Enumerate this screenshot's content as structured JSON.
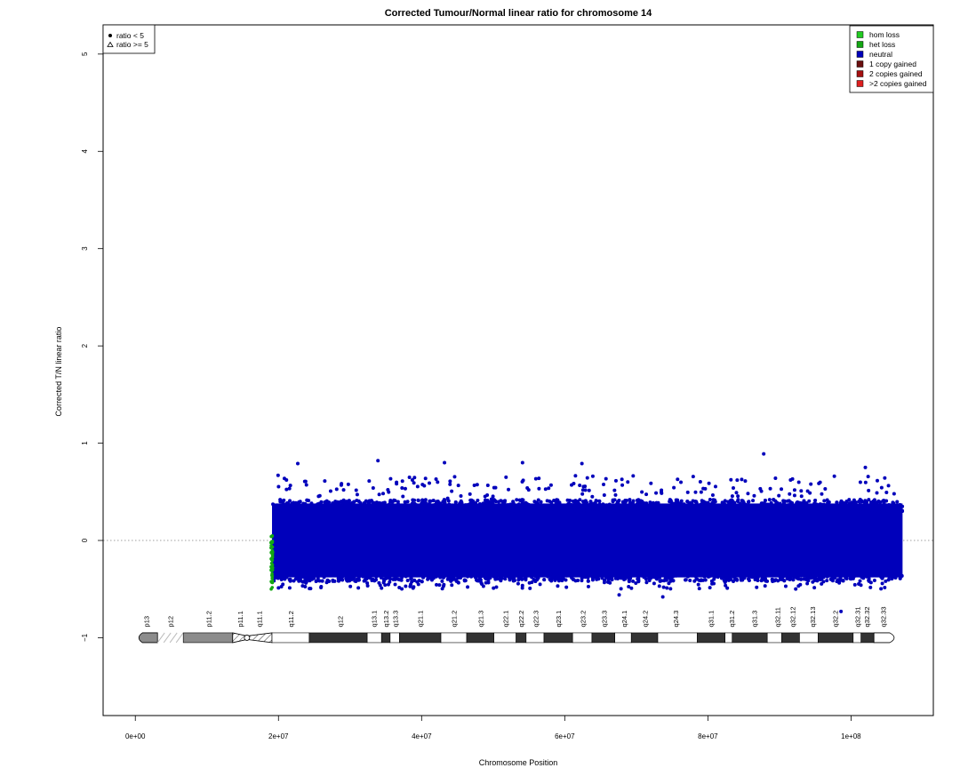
{
  "chart_data": {
    "type": "scatter",
    "title": "Corrected Tumour/Normal linear ratio for chromosome  14",
    "xlabel": "Chromosome Position",
    "ylabel": "Corrected T/N linear ratio",
    "xlim": [
      -4500000,
      111500000
    ],
    "ylim": [
      -1.8,
      5.3
    ],
    "x_ticks": [
      {
        "value": 0,
        "label": "0e+00"
      },
      {
        "value": 20000000,
        "label": "2e+07"
      },
      {
        "value": 40000000,
        "label": "4e+07"
      },
      {
        "value": 60000000,
        "label": "6e+07"
      },
      {
        "value": 80000000,
        "label": "8e+07"
      },
      {
        "value": 100000000,
        "label": "1e+08"
      }
    ],
    "y_ticks": [
      {
        "value": -1,
        "label": "−1"
      },
      {
        "value": 0,
        "label": "0"
      },
      {
        "value": 1,
        "label": "1"
      },
      {
        "value": 2,
        "label": "2"
      },
      {
        "value": 3,
        "label": "3"
      },
      {
        "value": 4,
        "label": "4"
      },
      {
        "value": 5,
        "label": "5"
      }
    ],
    "reference_line": {
      "y": 0,
      "style": "dotted",
      "color": "#808080"
    },
    "shape_legend": {
      "placement": "top-left",
      "items": [
        {
          "symbol": "dot",
          "label": "ratio < 5"
        },
        {
          "symbol": "triangle",
          "label": "ratio >= 5"
        }
      ]
    },
    "color_legend": {
      "placement": "top-right",
      "items": [
        {
          "label": "hom loss",
          "color": "#22cc22"
        },
        {
          "label": "het loss",
          "color": "#13a813"
        },
        {
          "label": "neutral",
          "color": "#0000bb"
        },
        {
          "label": "1 copy gained",
          "color": "#6b0f0f"
        },
        {
          "label": "2 copies gained",
          "color": "#a51010"
        },
        {
          "label": ">2 copies gained",
          "color": "#dd1f1f"
        }
      ]
    },
    "series": [
      {
        "name": "neutral",
        "color": "#0000bb",
        "x_range": [
          19100000,
          107200000
        ],
        "y_core_range": [
          -0.38,
          0.38
        ],
        "y_spread_range": [
          -0.56,
          0.9
        ],
        "outliers": [
          {
            "x": 22700000,
            "y": 0.79
          },
          {
            "x": 33900000,
            "y": 0.82
          },
          {
            "x": 43200000,
            "y": 0.8
          },
          {
            "x": 54100000,
            "y": 0.8
          },
          {
            "x": 62400000,
            "y": 0.79
          },
          {
            "x": 87800000,
            "y": 0.89
          },
          {
            "x": 98600000,
            "y": -0.73
          },
          {
            "x": 73700000,
            "y": -0.58
          },
          {
            "x": 67600000,
            "y": -0.56
          },
          {
            "x": 102000000,
            "y": 0.75
          }
        ]
      },
      {
        "name": "het loss",
        "color": "#13a813",
        "x_range": [
          18950000,
          19200000
        ],
        "y_range": [
          -0.5,
          0.05
        ]
      }
    ],
    "ideogram": {
      "y": -1,
      "bands": [
        {
          "name": "p13",
          "start": 0,
          "end": 3100000,
          "stain": "acen-gray",
          "label_x": 1500000
        },
        {
          "name": "p12",
          "start": 3100000,
          "end": 6700000,
          "stain": "stalk",
          "label_x": 4900000
        },
        {
          "name": "p11.2",
          "start": 6700000,
          "end": 13600000,
          "stain": "gvar",
          "label_x": 10200000
        },
        {
          "name": "p11.1",
          "start": 13600000,
          "end": 15600000,
          "stain": "hatch",
          "label_x": 14600000
        },
        {
          "name": "q11.1",
          "start": 15600000,
          "end": 19100000,
          "stain": "hatch",
          "label_x": 17300000
        },
        {
          "name": "q11.2",
          "start": 19100000,
          "end": 24300000,
          "stain": "gneg",
          "label_x": 21700000
        },
        {
          "name": "q12",
          "start": 24300000,
          "end": 32400000,
          "stain": "gpos100",
          "label_x": 28600000
        },
        {
          "name": "q13.1",
          "start": 32400000,
          "end": 34400000,
          "stain": "gneg",
          "label_x": 33300000
        },
        {
          "name": "q13.2",
          "start": 34400000,
          "end": 35600000,
          "stain": "gpos100",
          "label_x": 35000000
        },
        {
          "name": "q13.3",
          "start": 35600000,
          "end": 36900000,
          "stain": "gneg",
          "label_x": 36300000
        },
        {
          "name": "q21.1",
          "start": 36900000,
          "end": 42700000,
          "stain": "gpos100",
          "label_x": 39800000
        },
        {
          "name": "q21.2",
          "start": 42700000,
          "end": 46300000,
          "stain": "gneg",
          "label_x": 44500000
        },
        {
          "name": "q21.3",
          "start": 46300000,
          "end": 50100000,
          "stain": "gpos100",
          "label_x": 48200000
        },
        {
          "name": "q22.1",
          "start": 50100000,
          "end": 53200000,
          "stain": "gneg",
          "label_x": 51700000
        },
        {
          "name": "q22.2",
          "start": 53200000,
          "end": 54600000,
          "stain": "gpos100",
          "label_x": 53900000
        },
        {
          "name": "q22.3",
          "start": 54600000,
          "end": 57100000,
          "stain": "gneg",
          "label_x": 55900000
        },
        {
          "name": "q23.1",
          "start": 57100000,
          "end": 61100000,
          "stain": "gpos100",
          "label_x": 59100000
        },
        {
          "name": "q23.2",
          "start": 61100000,
          "end": 63800000,
          "stain": "gneg",
          "label_x": 62500000
        },
        {
          "name": "q23.3",
          "start": 63800000,
          "end": 67000000,
          "stain": "gpos100",
          "label_x": 65500000
        },
        {
          "name": "q24.1",
          "start": 67000000,
          "end": 69300000,
          "stain": "gneg",
          "label_x": 68300000
        },
        {
          "name": "q24.2",
          "start": 69300000,
          "end": 73000000,
          "stain": "gpos100",
          "label_x": 71200000
        },
        {
          "name": "q24.3",
          "start": 73000000,
          "end": 78500000,
          "stain": "gneg",
          "label_x": 75500000
        },
        {
          "name": "q31.1",
          "start": 78500000,
          "end": 82400000,
          "stain": "gpos100",
          "label_x": 80400000
        },
        {
          "name": "q31.2",
          "start": 82400000,
          "end": 83400000,
          "stain": "gneg",
          "label_x": 83300000
        },
        {
          "name": "q31.3",
          "start": 83400000,
          "end": 88300000,
          "stain": "gpos100",
          "label_x": 86500000
        },
        {
          "name": "q32.11",
          "start": 88300000,
          "end": 90300000,
          "stain": "gneg",
          "label_x": 89700000
        },
        {
          "name": "q32.12",
          "start": 90300000,
          "end": 92800000,
          "stain": "gpos100",
          "label_x": 91800000
        },
        {
          "name": "q32.13",
          "start": 92800000,
          "end": 95400000,
          "stain": "gneg",
          "label_x": 94600000
        },
        {
          "name": "q32.2",
          "start": 95400000,
          "end": 100300000,
          "stain": "gpos100",
          "label_x": 97800000
        },
        {
          "name": "q32.31",
          "start": 100300000,
          "end": 101400000,
          "stain": "gneg",
          "label_x": 100900000
        },
        {
          "name": "q32.32",
          "start": 101400000,
          "end": 103200000,
          "stain": "gpos100",
          "label_x": 102200000
        },
        {
          "name": "q32.33",
          "start": 103200000,
          "end": 106400000,
          "stain": "gneg",
          "label_x": 104500000
        }
      ]
    }
  }
}
